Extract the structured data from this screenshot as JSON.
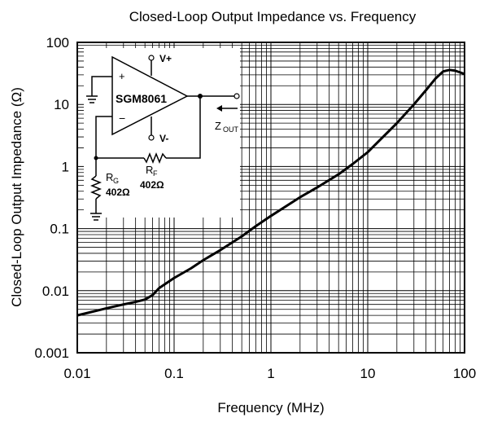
{
  "chart_data": {
    "type": "line",
    "title": "Closed-Loop Output Impedance vs. Frequency",
    "xlabel": "Frequency (MHz)",
    "ylabel": "Closed-Loop Output Impedance (Ω)",
    "x_scale": "log",
    "y_scale": "log",
    "xlim": [
      0.01,
      100
    ],
    "ylim": [
      0.001,
      100
    ],
    "x_ticks": [
      "0.01",
      "0.1",
      "1",
      "10",
      "100"
    ],
    "y_ticks": [
      "0.001",
      "0.01",
      "0.1",
      "1",
      "10",
      "100"
    ],
    "grid": true,
    "series": [
      {
        "x": [
          0.01,
          0.02,
          0.03,
          0.04,
          0.05,
          0.06,
          0.07,
          0.1,
          0.15,
          0.2,
          0.3,
          0.5,
          0.7,
          1,
          1.5,
          2,
          3,
          5,
          7,
          10,
          15,
          20,
          30,
          40,
          50,
          60,
          70,
          80,
          100
        ],
        "y": [
          0.004,
          0.0052,
          0.006,
          0.0066,
          0.0072,
          0.0085,
          0.011,
          0.016,
          0.023,
          0.031,
          0.045,
          0.075,
          0.11,
          0.16,
          0.24,
          0.32,
          0.46,
          0.75,
          1.1,
          1.7,
          3.2,
          5,
          10,
          17,
          26,
          34,
          36,
          35,
          31
        ]
      }
    ],
    "inset": {
      "part": "SGM8061",
      "vplus": "V+",
      "vminus": "V-",
      "plus_sign": "+",
      "minus_sign": "−",
      "zout": "Z",
      "zout_sub": "OUT",
      "rg": "R",
      "rg_sub": "G",
      "rg_value": "402Ω",
      "rf": "R",
      "rf_sub": "F",
      "rf_value": "402Ω"
    }
  }
}
